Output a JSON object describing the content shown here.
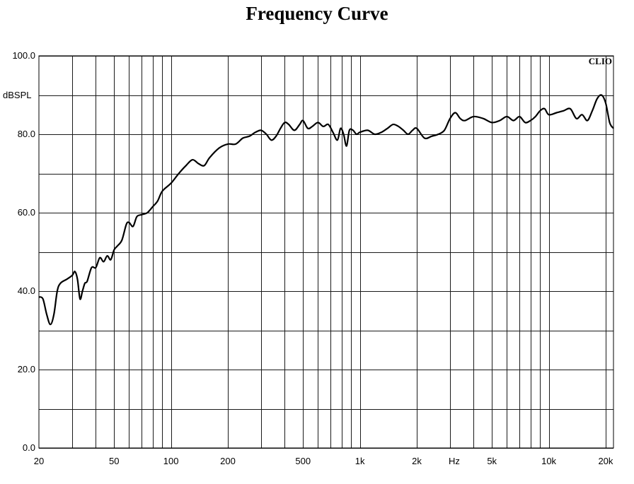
{
  "chart_data": {
    "type": "line",
    "title": "Frequency Curve",
    "ylabel": "dBSPL",
    "xunit": "Hz",
    "brand": "CLIO",
    "xscale": "log",
    "xlim": [
      20,
      22000
    ],
    "ylim": [
      0,
      100
    ],
    "grid": true,
    "y_ticks": [
      {
        "v": 0,
        "label": "0.0"
      },
      {
        "v": 20,
        "label": "20.0"
      },
      {
        "v": 40,
        "label": "40.0"
      },
      {
        "v": 60,
        "label": "60.0"
      },
      {
        "v": 80,
        "label": "80.0"
      },
      {
        "v": 100,
        "label": "100.0"
      }
    ],
    "y_minor": [
      10,
      30,
      50,
      70,
      90
    ],
    "x_ticks": [
      {
        "v": 20,
        "label": "20"
      },
      {
        "v": 50,
        "label": "50"
      },
      {
        "v": 100,
        "label": "100"
      },
      {
        "v": 200,
        "label": "200"
      },
      {
        "v": 500,
        "label": "500"
      },
      {
        "v": 1000,
        "label": "1k"
      },
      {
        "v": 2000,
        "label": "2k"
      },
      {
        "v": 5000,
        "label": "5k"
      },
      {
        "v": 10000,
        "label": "10k"
      },
      {
        "v": 20000,
        "label": "20k"
      }
    ],
    "x_grid": [
      30,
      40,
      50,
      60,
      70,
      80,
      90,
      100,
      200,
      300,
      400,
      500,
      600,
      700,
      800,
      900,
      1000,
      2000,
      3000,
      4000,
      5000,
      6000,
      7000,
      8000,
      9000,
      10000,
      20000
    ],
    "series": [
      {
        "color": "#000000",
        "points": [
          [
            20,
            38.5
          ],
          [
            21,
            38
          ],
          [
            22,
            34
          ],
          [
            23,
            31.5
          ],
          [
            24,
            34
          ],
          [
            25,
            40
          ],
          [
            26,
            42
          ],
          [
            28,
            43
          ],
          [
            30,
            44
          ],
          [
            31,
            45
          ],
          [
            32,
            43
          ],
          [
            33,
            38
          ],
          [
            34,
            40
          ],
          [
            35,
            42
          ],
          [
            36,
            42.5
          ],
          [
            38,
            46
          ],
          [
            40,
            46
          ],
          [
            42,
            48.5
          ],
          [
            44,
            47.5
          ],
          [
            46,
            49
          ],
          [
            48,
            48
          ],
          [
            50,
            50.5
          ],
          [
            52,
            51.5
          ],
          [
            55,
            53
          ],
          [
            58,
            57
          ],
          [
            60,
            57.5
          ],
          [
            63,
            56.5
          ],
          [
            66,
            59
          ],
          [
            70,
            59.5
          ],
          [
            75,
            60
          ],
          [
            80,
            61.5
          ],
          [
            85,
            63
          ],
          [
            90,
            65.5
          ],
          [
            100,
            67.5
          ],
          [
            110,
            70
          ],
          [
            120,
            72
          ],
          [
            130,
            73.5
          ],
          [
            140,
            72.5
          ],
          [
            150,
            72
          ],
          [
            160,
            74
          ],
          [
            180,
            76.5
          ],
          [
            200,
            77.5
          ],
          [
            220,
            77.5
          ],
          [
            240,
            79
          ],
          [
            260,
            79.5
          ],
          [
            280,
            80.5
          ],
          [
            300,
            81
          ],
          [
            320,
            80
          ],
          [
            340,
            78.5
          ],
          [
            360,
            79.5
          ],
          [
            380,
            81.5
          ],
          [
            400,
            83
          ],
          [
            420,
            82.5
          ],
          [
            450,
            81
          ],
          [
            480,
            82.5
          ],
          [
            500,
            83.5
          ],
          [
            530,
            81.5
          ],
          [
            560,
            82
          ],
          [
            600,
            83
          ],
          [
            640,
            82
          ],
          [
            680,
            82.5
          ],
          [
            720,
            80.5
          ],
          [
            760,
            78.5
          ],
          [
            790,
            81.5
          ],
          [
            820,
            80
          ],
          [
            850,
            77
          ],
          [
            880,
            81
          ],
          [
            920,
            81
          ],
          [
            960,
            80
          ],
          [
            1000,
            80.5
          ],
          [
            1100,
            81
          ],
          [
            1200,
            80
          ],
          [
            1300,
            80.5
          ],
          [
            1400,
            81.5
          ],
          [
            1500,
            82.5
          ],
          [
            1600,
            82
          ],
          [
            1700,
            81
          ],
          [
            1800,
            80
          ],
          [
            1900,
            81
          ],
          [
            2000,
            81.5
          ],
          [
            2200,
            79
          ],
          [
            2400,
            79.5
          ],
          [
            2600,
            80
          ],
          [
            2800,
            81
          ],
          [
            3000,
            84
          ],
          [
            3200,
            85.5
          ],
          [
            3400,
            84
          ],
          [
            3600,
            83.5
          ],
          [
            4000,
            84.5
          ],
          [
            4500,
            84
          ],
          [
            5000,
            83
          ],
          [
            5500,
            83.5
          ],
          [
            6000,
            84.5
          ],
          [
            6500,
            83.5
          ],
          [
            7000,
            84.5
          ],
          [
            7500,
            83
          ],
          [
            8000,
            83.5
          ],
          [
            8500,
            84.5
          ],
          [
            9000,
            86
          ],
          [
            9500,
            86.5
          ],
          [
            10000,
            85
          ],
          [
            11000,
            85.5
          ],
          [
            12000,
            86
          ],
          [
            13000,
            86.5
          ],
          [
            14000,
            84
          ],
          [
            15000,
            85
          ],
          [
            16000,
            83.5
          ],
          [
            17000,
            86
          ],
          [
            18000,
            89
          ],
          [
            19000,
            90
          ],
          [
            20000,
            88
          ],
          [
            21000,
            83
          ],
          [
            22000,
            81.5
          ]
        ]
      }
    ]
  }
}
